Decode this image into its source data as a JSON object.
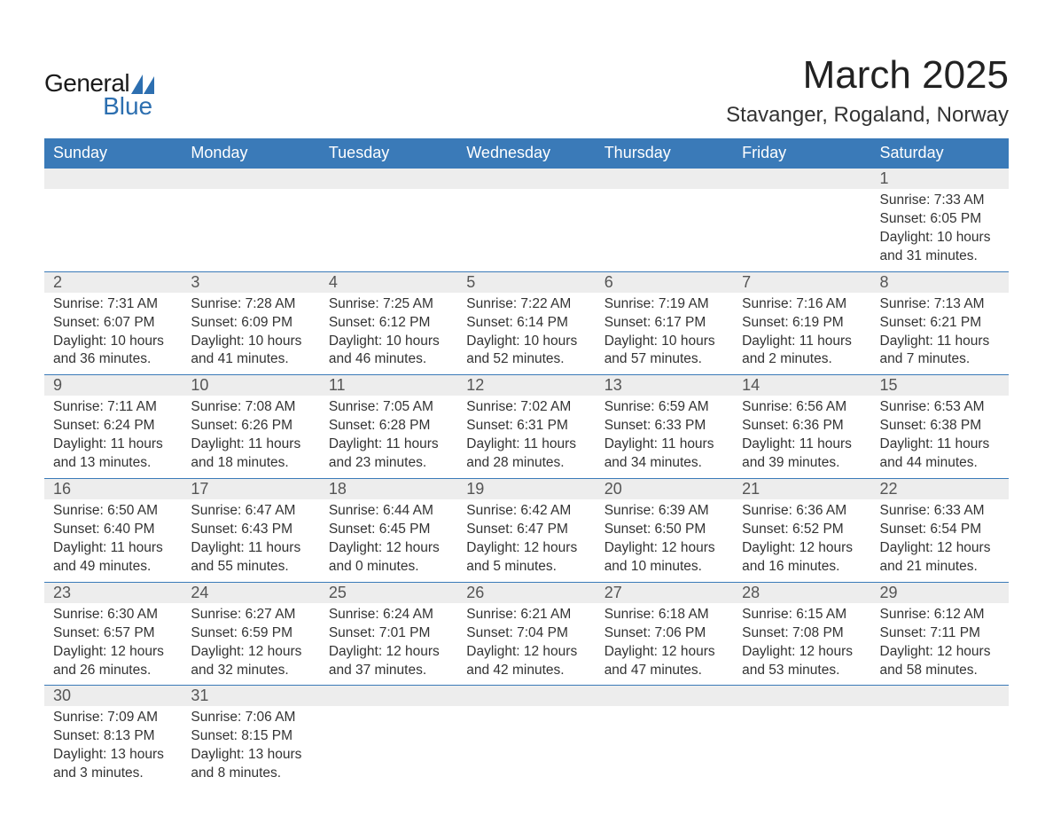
{
  "logo": {
    "text1": "General",
    "text2": "Blue",
    "mark_color": "#2d6fb0"
  },
  "title": "March 2025",
  "location": "Stavanger, Rogaland, Norway",
  "header_bg": "#3a7ab8",
  "header_fg": "#ffffff",
  "daynum_bg": "#ededed",
  "border_color": "#3a7ab8",
  "columns": [
    "Sunday",
    "Monday",
    "Tuesday",
    "Wednesday",
    "Thursday",
    "Friday",
    "Saturday"
  ],
  "weeks": [
    [
      null,
      null,
      null,
      null,
      null,
      null,
      {
        "n": "1",
        "sunrise": "7:33 AM",
        "sunset": "6:05 PM",
        "dl": "10 hours and 31 minutes."
      }
    ],
    [
      {
        "n": "2",
        "sunrise": "7:31 AM",
        "sunset": "6:07 PM",
        "dl": "10 hours and 36 minutes."
      },
      {
        "n": "3",
        "sunrise": "7:28 AM",
        "sunset": "6:09 PM",
        "dl": "10 hours and 41 minutes."
      },
      {
        "n": "4",
        "sunrise": "7:25 AM",
        "sunset": "6:12 PM",
        "dl": "10 hours and 46 minutes."
      },
      {
        "n": "5",
        "sunrise": "7:22 AM",
        "sunset": "6:14 PM",
        "dl": "10 hours and 52 minutes."
      },
      {
        "n": "6",
        "sunrise": "7:19 AM",
        "sunset": "6:17 PM",
        "dl": "10 hours and 57 minutes."
      },
      {
        "n": "7",
        "sunrise": "7:16 AM",
        "sunset": "6:19 PM",
        "dl": "11 hours and 2 minutes."
      },
      {
        "n": "8",
        "sunrise": "7:13 AM",
        "sunset": "6:21 PM",
        "dl": "11 hours and 7 minutes."
      }
    ],
    [
      {
        "n": "9",
        "sunrise": "7:11 AM",
        "sunset": "6:24 PM",
        "dl": "11 hours and 13 minutes."
      },
      {
        "n": "10",
        "sunrise": "7:08 AM",
        "sunset": "6:26 PM",
        "dl": "11 hours and 18 minutes."
      },
      {
        "n": "11",
        "sunrise": "7:05 AM",
        "sunset": "6:28 PM",
        "dl": "11 hours and 23 minutes."
      },
      {
        "n": "12",
        "sunrise": "7:02 AM",
        "sunset": "6:31 PM",
        "dl": "11 hours and 28 minutes."
      },
      {
        "n": "13",
        "sunrise": "6:59 AM",
        "sunset": "6:33 PM",
        "dl": "11 hours and 34 minutes."
      },
      {
        "n": "14",
        "sunrise": "6:56 AM",
        "sunset": "6:36 PM",
        "dl": "11 hours and 39 minutes."
      },
      {
        "n": "15",
        "sunrise": "6:53 AM",
        "sunset": "6:38 PM",
        "dl": "11 hours and 44 minutes."
      }
    ],
    [
      {
        "n": "16",
        "sunrise": "6:50 AM",
        "sunset": "6:40 PM",
        "dl": "11 hours and 49 minutes."
      },
      {
        "n": "17",
        "sunrise": "6:47 AM",
        "sunset": "6:43 PM",
        "dl": "11 hours and 55 minutes."
      },
      {
        "n": "18",
        "sunrise": "6:44 AM",
        "sunset": "6:45 PM",
        "dl": "12 hours and 0 minutes."
      },
      {
        "n": "19",
        "sunrise": "6:42 AM",
        "sunset": "6:47 PM",
        "dl": "12 hours and 5 minutes."
      },
      {
        "n": "20",
        "sunrise": "6:39 AM",
        "sunset": "6:50 PM",
        "dl": "12 hours and 10 minutes."
      },
      {
        "n": "21",
        "sunrise": "6:36 AM",
        "sunset": "6:52 PM",
        "dl": "12 hours and 16 minutes."
      },
      {
        "n": "22",
        "sunrise": "6:33 AM",
        "sunset": "6:54 PM",
        "dl": "12 hours and 21 minutes."
      }
    ],
    [
      {
        "n": "23",
        "sunrise": "6:30 AM",
        "sunset": "6:57 PM",
        "dl": "12 hours and 26 minutes."
      },
      {
        "n": "24",
        "sunrise": "6:27 AM",
        "sunset": "6:59 PM",
        "dl": "12 hours and 32 minutes."
      },
      {
        "n": "25",
        "sunrise": "6:24 AM",
        "sunset": "7:01 PM",
        "dl": "12 hours and 37 minutes."
      },
      {
        "n": "26",
        "sunrise": "6:21 AM",
        "sunset": "7:04 PM",
        "dl": "12 hours and 42 minutes."
      },
      {
        "n": "27",
        "sunrise": "6:18 AM",
        "sunset": "7:06 PM",
        "dl": "12 hours and 47 minutes."
      },
      {
        "n": "28",
        "sunrise": "6:15 AM",
        "sunset": "7:08 PM",
        "dl": "12 hours and 53 minutes."
      },
      {
        "n": "29",
        "sunrise": "6:12 AM",
        "sunset": "7:11 PM",
        "dl": "12 hours and 58 minutes."
      }
    ],
    [
      {
        "n": "30",
        "sunrise": "7:09 AM",
        "sunset": "8:13 PM",
        "dl": "13 hours and 3 minutes."
      },
      {
        "n": "31",
        "sunrise": "7:06 AM",
        "sunset": "8:15 PM",
        "dl": "13 hours and 8 minutes."
      },
      null,
      null,
      null,
      null,
      null
    ]
  ],
  "labels": {
    "sunrise": "Sunrise: ",
    "sunset": "Sunset: ",
    "daylight": "Daylight: "
  }
}
